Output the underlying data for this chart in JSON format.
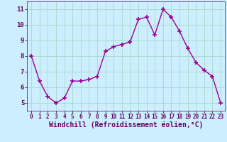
{
  "x": [
    0,
    1,
    2,
    3,
    4,
    5,
    6,
    7,
    8,
    9,
    10,
    11,
    12,
    13,
    14,
    15,
    16,
    17,
    18,
    19,
    20,
    21,
    22,
    23
  ],
  "y": [
    8.0,
    6.4,
    5.4,
    5.0,
    5.3,
    6.4,
    6.4,
    6.5,
    6.7,
    8.3,
    8.6,
    8.75,
    8.9,
    10.35,
    10.5,
    9.35,
    11.0,
    10.5,
    9.6,
    8.5,
    7.6,
    7.1,
    6.7,
    5.0
  ],
  "line_color": "#990099",
  "marker": "+",
  "marker_size": 4,
  "xlabel": "Windchill (Refroidissement éolien,°C)",
  "xlabel_fontsize": 7,
  "bg_color": "#cceeff",
  "grid_color": "#aaddcc",
  "axis_label_color": "#660066",
  "tick_label_color": "#660066",
  "xlim": [
    -0.5,
    23.5
  ],
  "ylim": [
    4.5,
    11.5
  ],
  "yticks": [
    5,
    6,
    7,
    8,
    9,
    10,
    11
  ],
  "xticks": [
    0,
    1,
    2,
    3,
    4,
    5,
    6,
    7,
    8,
    9,
    10,
    11,
    12,
    13,
    14,
    15,
    16,
    17,
    18,
    19,
    20,
    21,
    22,
    23
  ]
}
